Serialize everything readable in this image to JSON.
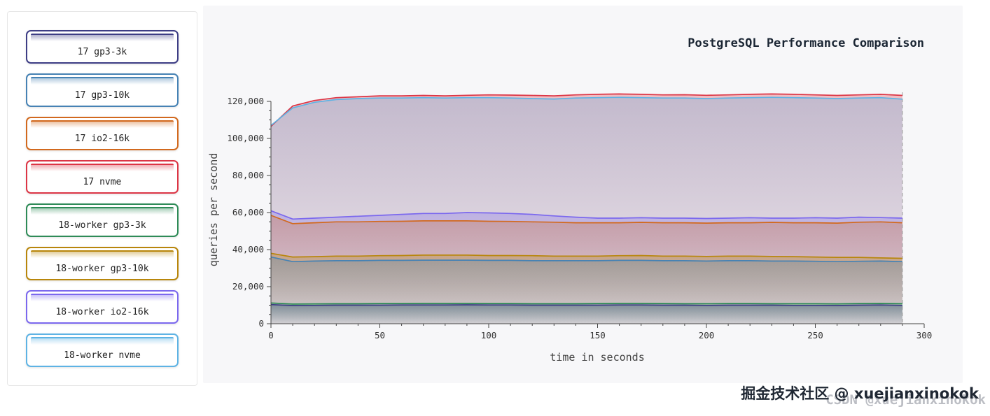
{
  "legend": {
    "items": [
      {
        "label": "17 gp3-3k",
        "color": "#3d3d85"
      },
      {
        "label": "17 gp3-10k",
        "color": "#4682b4"
      },
      {
        "label": "17 io2-16k",
        "color": "#d2691e"
      },
      {
        "label": "17 nvme",
        "color": "#dc3545"
      },
      {
        "label": "18-worker gp3-3k",
        "color": "#2e8b57"
      },
      {
        "label": "18-worker gp3-10k",
        "color": "#b8860b"
      },
      {
        "label": "18-worker io2-16k",
        "color": "#7b68ee"
      },
      {
        "label": "18-worker nvme",
        "color": "#5eb3e4"
      }
    ]
  },
  "watermark": {
    "primary": "掘金技术社区 @ xuejianxinokok",
    "secondary": "CSDN @xuejianxinokok"
  },
  "chart_data": {
    "type": "area",
    "title": "PostgreSQL Performance Comparison",
    "xlabel": "time in seconds",
    "ylabel": "queries per second",
    "xlim": [
      0,
      300
    ],
    "ylim": [
      0,
      120000
    ],
    "x_ticks": [
      0,
      50,
      100,
      150,
      200,
      250,
      300
    ],
    "y_ticks": [
      0,
      20000,
      40000,
      60000,
      80000,
      100000,
      120000
    ],
    "grid": false,
    "legend_position": "left",
    "end_marker_x": 290,
    "x": [
      0,
      10,
      20,
      30,
      40,
      50,
      60,
      70,
      80,
      90,
      100,
      110,
      120,
      130,
      140,
      150,
      160,
      170,
      180,
      190,
      200,
      210,
      220,
      230,
      240,
      250,
      260,
      270,
      280,
      290
    ],
    "series": [
      {
        "name": "17 gp3-3k",
        "color": "#3d3d85",
        "values": [
          10300,
          9800,
          9900,
          10000,
          10000,
          10000,
          10100,
          10100,
          10100,
          10200,
          10100,
          10100,
          10000,
          10000,
          10000,
          10000,
          10100,
          10100,
          10000,
          10000,
          9900,
          10000,
          10000,
          10000,
          9900,
          9900,
          9800,
          10000,
          10100,
          9900
        ]
      },
      {
        "name": "17 gp3-10k",
        "color": "#4682b4",
        "values": [
          36000,
          33500,
          33800,
          34000,
          34000,
          34200,
          34200,
          34300,
          34300,
          34300,
          34200,
          34200,
          34000,
          34000,
          34000,
          34000,
          34200,
          34200,
          34000,
          34000,
          33800,
          34000,
          34000,
          33800,
          33800,
          33700,
          33500,
          33700,
          33800,
          33500
        ]
      },
      {
        "name": "17 io2-16k",
        "color": "#d2691e",
        "values": [
          58500,
          54000,
          54500,
          55000,
          55000,
          55200,
          55300,
          55500,
          55500,
          55500,
          55300,
          55200,
          55000,
          54800,
          54500,
          54500,
          54500,
          54700,
          54500,
          54500,
          54300,
          54500,
          54500,
          54700,
          54500,
          54500,
          54300,
          54800,
          55000,
          54500
        ]
      },
      {
        "name": "17 nvme",
        "color": "#dc3545",
        "values": [
          106500,
          117500,
          120500,
          122000,
          122500,
          123000,
          123000,
          123200,
          123000,
          123300,
          123500,
          123400,
          123200,
          123000,
          123500,
          123800,
          124000,
          123800,
          123500,
          123600,
          123300,
          123500,
          123800,
          124000,
          123800,
          123500,
          123200,
          123500,
          123800,
          123200
        ]
      },
      {
        "name": "18-worker gp3-3k",
        "color": "#2e8b57",
        "values": [
          11200,
          10600,
          10700,
          10800,
          10800,
          10900,
          10900,
          11000,
          11000,
          11000,
          10900,
          10900,
          10800,
          10800,
          10800,
          10900,
          11000,
          11000,
          10900,
          10800,
          10800,
          10900,
          10900,
          10800,
          10800,
          10800,
          10700,
          10900,
          11000,
          10800
        ]
      },
      {
        "name": "18-worker gp3-10k",
        "color": "#b8860b",
        "values": [
          38000,
          36000,
          36200,
          36500,
          36500,
          36700,
          36800,
          37000,
          37000,
          37000,
          36800,
          36800,
          36700,
          36500,
          36500,
          36500,
          36700,
          36800,
          36500,
          36500,
          36300,
          36500,
          36500,
          36300,
          36200,
          36000,
          35800,
          35800,
          35500,
          35300
        ]
      },
      {
        "name": "18-worker io2-16k",
        "color": "#7b68ee",
        "values": [
          61000,
          56500,
          57000,
          57500,
          58000,
          58500,
          59000,
          59500,
          59500,
          60000,
          59800,
          59500,
          59000,
          58200,
          57500,
          57000,
          57000,
          57200,
          57000,
          57000,
          56800,
          57000,
          57200,
          57000,
          57000,
          57200,
          57000,
          57500,
          57300,
          57000
        ]
      },
      {
        "name": "18-worker nvme",
        "color": "#5eb3e4",
        "values": [
          107000,
          116500,
          119500,
          121000,
          121500,
          121800,
          121800,
          122000,
          121800,
          122000,
          122000,
          121800,
          121500,
          121300,
          121800,
          122000,
          122200,
          122000,
          121800,
          121800,
          121500,
          121800,
          122000,
          122200,
          122000,
          121800,
          121500,
          121800,
          122000,
          121200
        ]
      }
    ]
  }
}
